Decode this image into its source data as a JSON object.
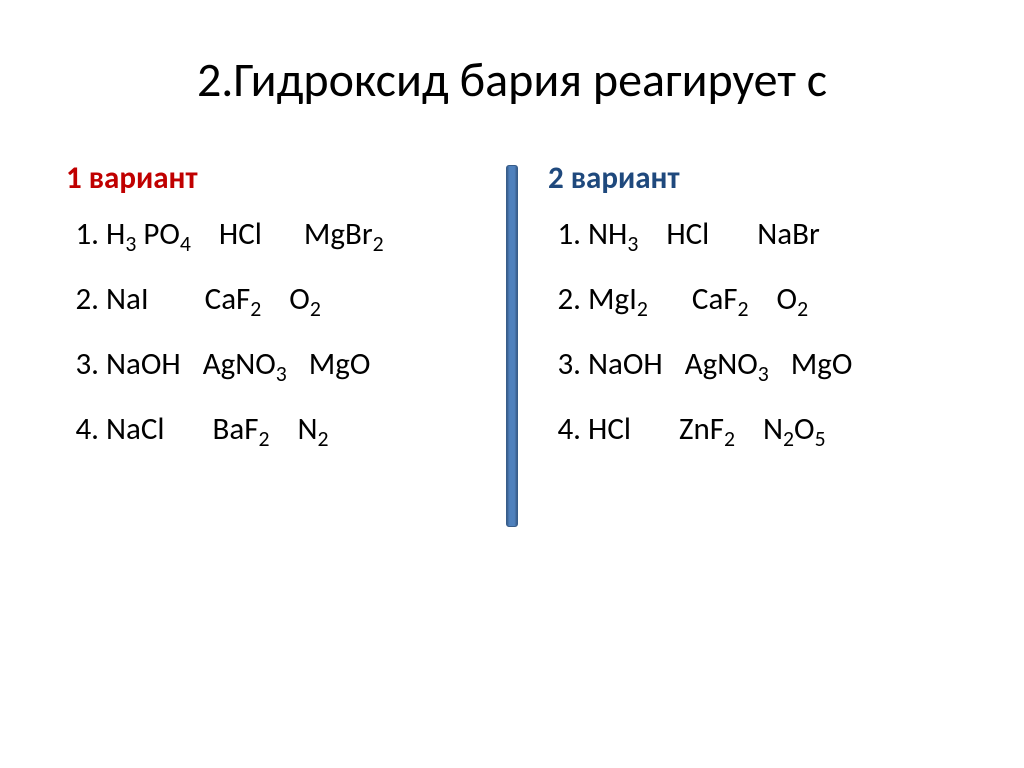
{
  "slide": {
    "title": "2.Гидроксид бария реагирует с",
    "title_fontsize": 48,
    "title_color": "#000000",
    "divider_fill": "#4f81bd",
    "divider_border": "#385d8a",
    "body_fontsize": 31,
    "line_height": 58,
    "segment_gap": 38,
    "left": {
      "label": "1 вариант",
      "label_color": "#c00000",
      "items": [
        [
          [
            {
              "t": "H"
            },
            {
              "t": "3",
              "sub": true
            },
            {
              "t": " PO"
            },
            {
              "t": "4",
              "sub": true
            }
          ],
          [
            {
              "t": "HCl"
            }
          ],
          [
            {
              "t": "MgBr"
            },
            {
              "t": "2",
              "sub": true
            }
          ]
        ],
        [
          [
            {
              "t": "NaI"
            }
          ],
          [
            {
              "t": "CaF"
            },
            {
              "t": "2",
              "sub": true
            }
          ],
          [
            {
              "t": "O"
            },
            {
              "t": "2",
              "sub": true
            }
          ]
        ],
        [
          [
            {
              "t": "NaOH"
            }
          ],
          [
            {
              "t": "AgNO"
            },
            {
              "t": "3",
              "sub": true
            }
          ],
          [
            {
              "t": "MgO"
            }
          ]
        ],
        [
          [
            {
              "t": "NaCl"
            }
          ],
          [
            {
              "t": "BaF"
            },
            {
              "t": "2",
              "sub": true
            }
          ],
          [
            {
              "t": "N"
            },
            {
              "t": "2",
              "sub": true
            }
          ]
        ]
      ],
      "segment_gaps": [
        [
          28,
          42
        ],
        [
          56,
          28
        ],
        [
          22,
          22
        ],
        [
          48,
          28
        ]
      ]
    },
    "right": {
      "label": "2 вариант",
      "label_color": "#1f497d",
      "items": [
        [
          [
            {
              "t": "NH"
            },
            {
              "t": "3",
              "sub": true
            }
          ],
          [
            {
              "t": "HCl"
            }
          ],
          [
            {
              "t": "NaBr"
            }
          ]
        ],
        [
          [
            {
              "t": "MgI"
            },
            {
              "t": "2",
              "sub": true
            }
          ],
          [
            {
              "t": "CaF"
            },
            {
              "t": "2",
              "sub": true
            }
          ],
          [
            {
              "t": "O"
            },
            {
              "t": "2",
              "sub": true
            }
          ]
        ],
        [
          [
            {
              "t": "NaOH"
            }
          ],
          [
            {
              "t": "AgNO"
            },
            {
              "t": "3",
              "sub": true
            }
          ],
          [
            {
              "t": "MgO"
            }
          ]
        ],
        [
          [
            {
              "t": "HCl"
            }
          ],
          [
            {
              "t": "ZnF"
            },
            {
              "t": "2",
              "sub": true
            }
          ],
          [
            {
              "t": "N"
            },
            {
              "t": "2",
              "sub": true
            },
            {
              "t": "O"
            },
            {
              "t": "5",
              "sub": true
            }
          ]
        ]
      ],
      "segment_gaps": [
        [
          28,
          48
        ],
        [
          44,
          28
        ],
        [
          22,
          22
        ],
        [
          48,
          28
        ]
      ]
    }
  }
}
